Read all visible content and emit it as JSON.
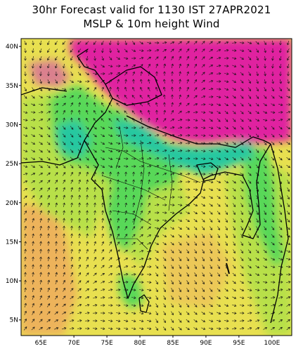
{
  "title_line1": "30hr Forecast valid for 1130 IST 27APR2021",
  "title_line2": "MSLP & 10m height Wind",
  "lat_labels": [
    "40N",
    "35N",
    "30N",
    "25N",
    "20N",
    "15N",
    "10N",
    "5N"
  ],
  "lon_labels": [
    "65E",
    "70E",
    "75E",
    "80E",
    "85E",
    "90E",
    "95E",
    "100E"
  ],
  "colors": {
    "high_pressure": "#e020a0",
    "mid_pressure": "#28c8a0",
    "green": "#58d858",
    "yellow_green": "#b8e048",
    "yellow": "#e8e050",
    "orange": "#f0a060",
    "border": "#000000",
    "arrow": "#111111"
  }
}
